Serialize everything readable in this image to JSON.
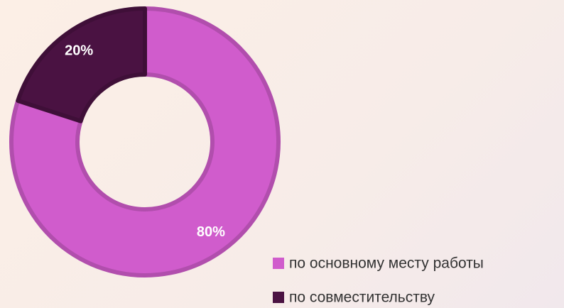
{
  "chart_data": {
    "type": "donut",
    "categories": [
      "по основному месту работы",
      "по совместительству"
    ],
    "values": [
      80,
      20
    ],
    "value_labels": [
      "80%",
      "20%"
    ],
    "colors": [
      "#d05ccc",
      "#4a1242"
    ],
    "legend": "bottom-right"
  }
}
